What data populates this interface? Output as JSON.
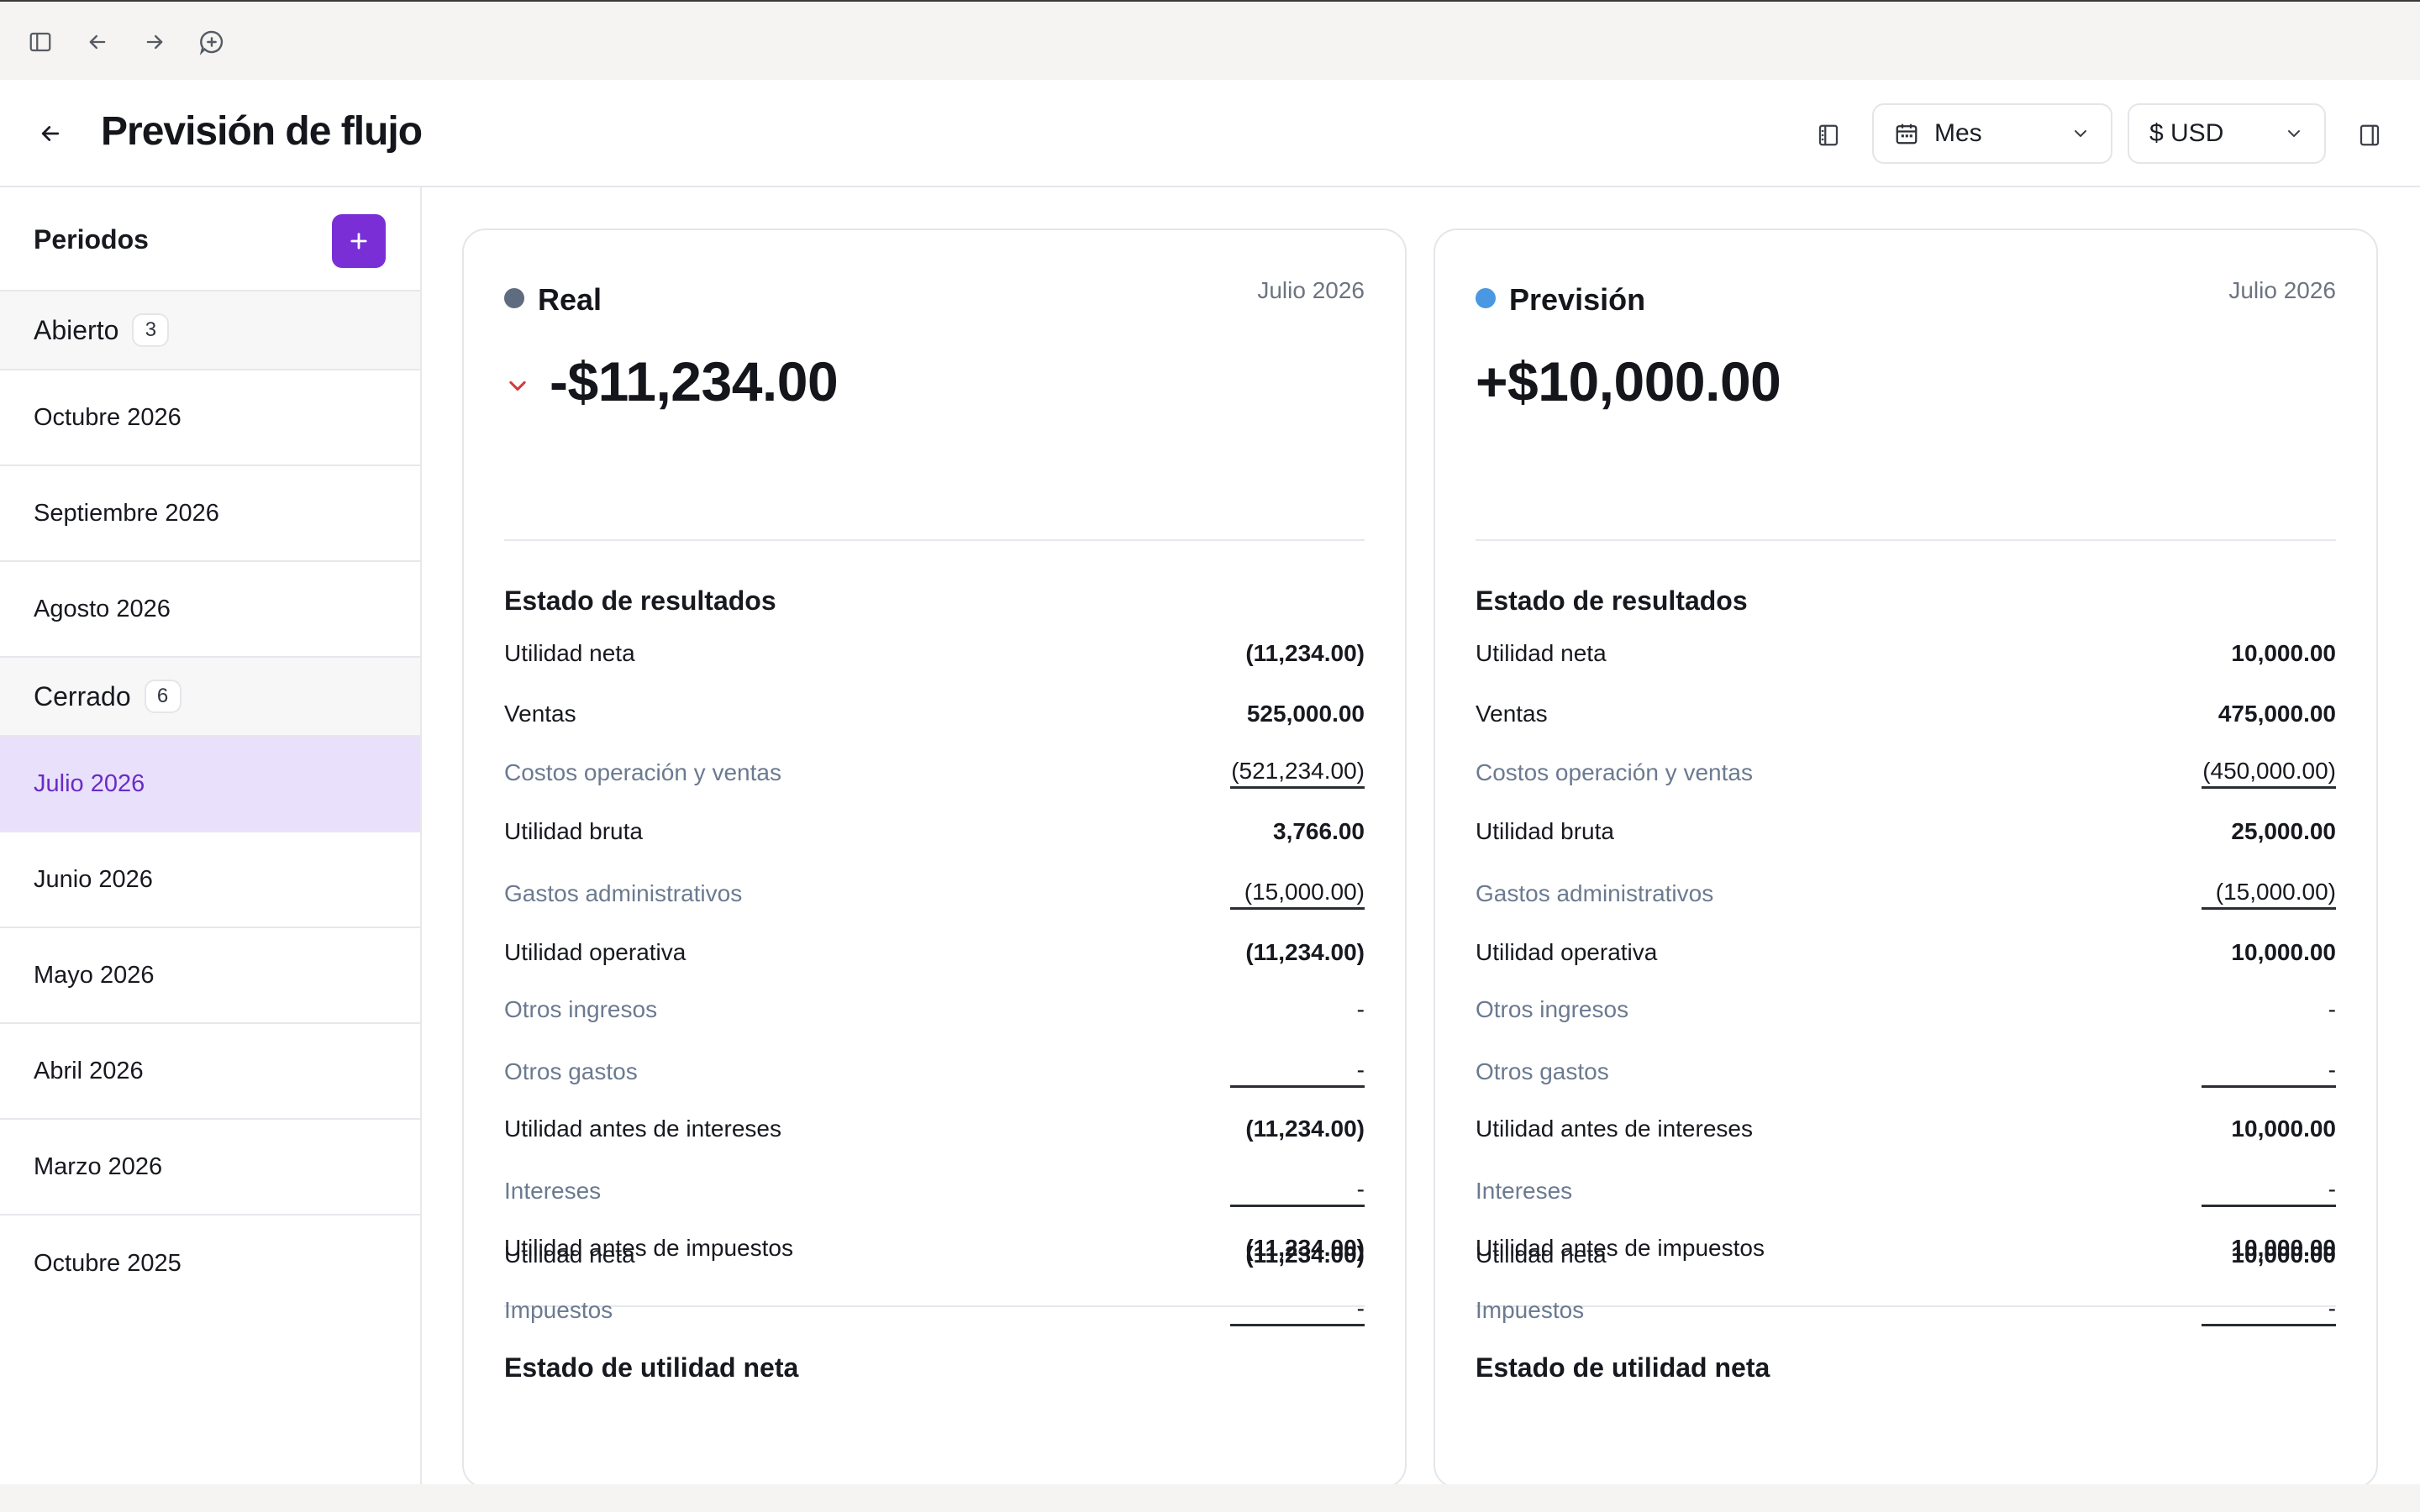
{
  "chrome": {
    "icons": [
      "sidebar-toggle-icon",
      "arrow-left-icon",
      "arrow-right-icon",
      "new-tab-icon"
    ]
  },
  "header": {
    "title": "Previsión de flujo",
    "period_select": "Mes",
    "currency_select": "$ USD"
  },
  "sidebar": {
    "title": "Periodos",
    "groups": [
      {
        "label": "Abierto",
        "count": "3",
        "items": [
          "Octubre 2026",
          "Septiembre 2026",
          "Agosto 2026"
        ]
      },
      {
        "label": "Cerrado",
        "count": "6",
        "items": [
          "Julio 2026",
          "Junio 2026",
          "Mayo 2026",
          "Abril 2026",
          "Marzo 2026",
          "Octubre 2025"
        ]
      }
    ],
    "active_item": "Julio 2026"
  },
  "cards": [
    {
      "label": "Real",
      "period": "Julio 2026",
      "dot_color": "#5f6b7e",
      "trend": "down",
      "amount": "-$11,234.00",
      "income_statement": {
        "title": "Estado de resultados",
        "rows": [
          {
            "label": "Ventas",
            "value": "525,000.00"
          },
          {
            "label": "Costos operación y ventas",
            "value": "(521,234.00)"
          },
          {
            "label": "Utilidad bruta",
            "value": "3,766.00"
          },
          {
            "label": "Gastos administrativos",
            "value": "(15,000.00)"
          },
          {
            "label": "Utilidad operativa",
            "value": "(11,234.00)"
          },
          {
            "label": "Otros ingresos",
            "value": "-"
          },
          {
            "label": "Otros gastos",
            "value": "-"
          },
          {
            "label": "Utilidad antes de intereses",
            "value": "(11,234.00)"
          },
          {
            "label": "Intereses",
            "value": "-"
          },
          {
            "label": "Utilidad antes de impuestos",
            "value": "(11,234.00)"
          },
          {
            "label": "Impuestos",
            "value": "-"
          },
          {
            "label": "Utilidad neta",
            "value": "(11,234.00)"
          }
        ]
      },
      "net_income_statement": {
        "title": "Estado de utilidad neta",
        "rows": [
          {
            "label": "Utilidad neta",
            "value": "(11,234.00)"
          }
        ]
      }
    },
    {
      "label": "Previsión",
      "period": "Julio 2026",
      "dot_color": "#4a98e2",
      "trend": "none",
      "amount": "+$10,000.00",
      "income_statement": {
        "title": "Estado de resultados",
        "rows": [
          {
            "label": "Ventas",
            "value": "475,000.00"
          },
          {
            "label": "Costos operación y ventas",
            "value": "(450,000.00)"
          },
          {
            "label": "Utilidad bruta",
            "value": "25,000.00"
          },
          {
            "label": "Gastos administrativos",
            "value": "(15,000.00)"
          },
          {
            "label": "Utilidad operativa",
            "value": "10,000.00"
          },
          {
            "label": "Otros ingresos",
            "value": "-"
          },
          {
            "label": "Otros gastos",
            "value": "-"
          },
          {
            "label": "Utilidad antes de intereses",
            "value": "10,000.00"
          },
          {
            "label": "Intereses",
            "value": "-"
          },
          {
            "label": "Utilidad antes de impuestos",
            "value": "10,000.00"
          },
          {
            "label": "Impuestos",
            "value": "-"
          },
          {
            "label": "Utilidad neta",
            "value": "10,000.00"
          }
        ]
      },
      "net_income_statement": {
        "title": "Estado de utilidad neta",
        "rows": [
          {
            "label": "Utilidad neta",
            "value": "10,000.00"
          }
        ]
      }
    }
  ],
  "colors": {
    "accent": "#7a2fd6",
    "active_bg": "#e9e1fb",
    "negative": "#d63a3a",
    "muted_label": "#6b7a90"
  }
}
